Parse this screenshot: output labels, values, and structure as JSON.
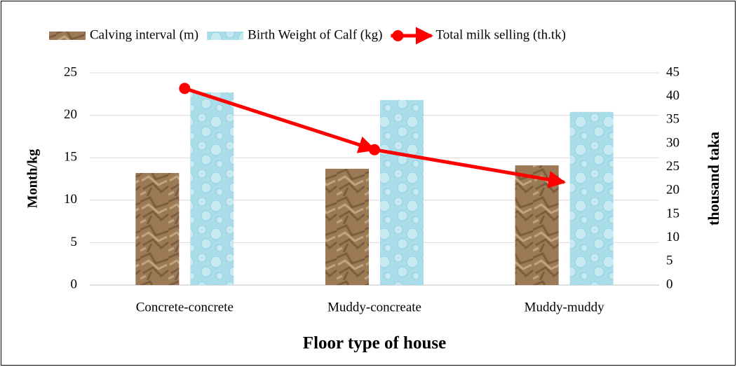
{
  "chart_data": {
    "type": "bar",
    "x_label": "Floor type of house",
    "y_label": "Month/kg",
    "y2_label": "thousand taka",
    "categories": [
      "Concrete-concrete",
      "Muddy-concreate",
      "Muddy-muddy"
    ],
    "series": [
      {
        "name": "Calving interval (m)",
        "type": "bar",
        "color": "#9c7a55",
        "values": [
          13.2,
          13.7,
          14.1
        ]
      },
      {
        "name": "Birth Weight of Calf (kg)",
        "type": "bar",
        "color": "#a9dde9",
        "values": [
          22.7,
          21.8,
          20.4
        ]
      },
      {
        "name": "Total milk selling (th.tk)",
        "type": "line",
        "axis": "y2",
        "color": "#ff0000",
        "values": [
          41.7,
          28.7,
          21.8
        ]
      }
    ],
    "ylim": [
      0,
      25
    ],
    "yticks": [
      0,
      5,
      10,
      15,
      20,
      25
    ],
    "y2lim": [
      0,
      45
    ],
    "y2ticks": [
      0,
      5,
      10,
      15,
      20,
      25,
      30,
      35,
      40,
      45
    ],
    "grid": true,
    "legend": "top"
  }
}
